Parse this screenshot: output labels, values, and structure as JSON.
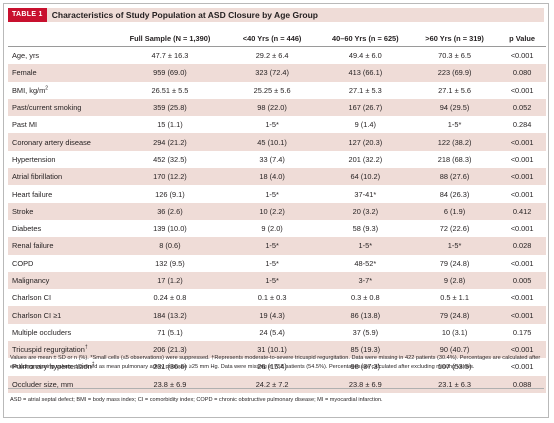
{
  "title": {
    "label": "TABLE 1",
    "text": "Characteristics of Study Population at ASD Closure by Age Group"
  },
  "columns": [
    "",
    "Full Sample (N = 1,390)",
    "<40 Yrs (n = 446)",
    "40–60 Yrs (n = 625)",
    ">60 Yrs (n = 319)",
    "p Value"
  ],
  "rows": [
    {
      "label": "Age, yrs",
      "cells": [
        "47.7 ± 16.3",
        "29.2 ± 6.4",
        "49.4 ± 6.0",
        "70.3 ± 6.5",
        "<0.001"
      ]
    },
    {
      "label": "Female",
      "cells": [
        "959 (69.0)",
        "323 (72.4)",
        "413 (66.1)",
        "223 (69.9)",
        "0.080"
      ]
    },
    {
      "label": "BMI, kg/m",
      "label_sup": "2",
      "cells": [
        "26.51 ± 5.5",
        "25.25 ± 5.6",
        "27.1 ± 5.3",
        "27.1 ± 5.6",
        "<0.001"
      ]
    },
    {
      "label": "Past/current smoking",
      "cells": [
        "359 (25.8)",
        "98 (22.0)",
        "167 (26.7)",
        "94 (29.5)",
        "0.052"
      ]
    },
    {
      "label": "Past MI",
      "cells": [
        "15 (1.1)",
        "1-5*",
        "9 (1.4)",
        "1-5*",
        "0.284"
      ]
    },
    {
      "label": "Coronary artery disease",
      "cells": [
        "294 (21.2)",
        "45 (10.1)",
        "127 (20.3)",
        "122 (38.2)",
        "<0.001"
      ]
    },
    {
      "label": "Hypertension",
      "cells": [
        "452 (32.5)",
        "33 (7.4)",
        "201 (32.2)",
        "218 (68.3)",
        "<0.001"
      ]
    },
    {
      "label": "Atrial fibrillation",
      "cells": [
        "170 (12.2)",
        "18 (4.0)",
        "64 (10.2)",
        "88 (27.6)",
        "<0.001"
      ]
    },
    {
      "label": "Heart failure",
      "cells": [
        "126 (9.1)",
        "1-5*",
        "37-41*",
        "84 (26.3)",
        "<0.001"
      ]
    },
    {
      "label": "Stroke",
      "cells": [
        "36 (2.6)",
        "10 (2.2)",
        "20 (3.2)",
        "6 (1.9)",
        "0.412"
      ]
    },
    {
      "label": "Diabetes",
      "cells": [
        "139 (10.0)",
        "9 (2.0)",
        "58 (9.3)",
        "72 (22.6)",
        "<0.001"
      ]
    },
    {
      "label": "Renal failure",
      "cells": [
        "8 (0.6)",
        "1-5*",
        "1-5*",
        "1-5*",
        "0.028"
      ]
    },
    {
      "label": "COPD",
      "cells": [
        "132 (9.5)",
        "1-5*",
        "48-52*",
        "79 (24.8)",
        "<0.001"
      ]
    },
    {
      "label": "Malignancy",
      "cells": [
        "17 (1.2)",
        "1-5*",
        "3-7*",
        "9 (2.8)",
        "0.005"
      ]
    },
    {
      "label": "Charlson CI",
      "cells": [
        "0.24 ± 0.8",
        "0.1 ± 0.3",
        "0.3 ± 0.8",
        "0.5 ± 1.1",
        "<0.001"
      ]
    },
    {
      "label": "Charlson CI ≥1",
      "cells": [
        "184 (13.2)",
        "19 (4.3)",
        "86 (13.8)",
        "79 (24.8)",
        "<0.001"
      ]
    },
    {
      "label": "Multiple occluders",
      "cells": [
        "71 (5.1)",
        "24 (5.4)",
        "37 (5.9)",
        "10 (3.1)",
        "0.175"
      ]
    },
    {
      "label": "Tricuspid regurgitation",
      "label_sup": "†",
      "cells": [
        "206 (21.3)",
        "31 (10.1)",
        "85 (19.3)",
        "90 (40.7)",
        "<0.001"
      ]
    },
    {
      "label": "Pulmonary hypertension",
      "label_sup": "‡",
      "cells": [
        "231 (36.6)",
        "26 (15.4)",
        "98 (37.3)",
        "107 (53.5)",
        "<0.001"
      ]
    },
    {
      "label": "Occluder size, mm",
      "cells": [
        "23.8 ± 6.9",
        "24.2 ± 7.2",
        "23.8 ± 6.9",
        "23.1 ± 6.3",
        "0.088"
      ]
    }
  ],
  "footnotes": {
    "main": "Values are mean ± SD or n (%). *Small cells (≤5 observations) were suppressed. †Represents moderate-to-severe tricuspid regurgitation. Data were missing in 422 patients (30.4%). Percentages are calculated after excluding missing values. ‡Defined as mean pulmonary artery pressure ≥25 mm Hg. Data were missing in 758 patients (54.5%). Percentages are calculated after excluding missing values.",
    "abbrev": "ASD = atrial septal defect; BMI = body mass index; CI = comorbidity index; COPD = chronic obstructive pulmonary disease; MI = myocardial infarction."
  },
  "colors": {
    "accent": "#c8102e",
    "shade": "#efdcd7"
  }
}
